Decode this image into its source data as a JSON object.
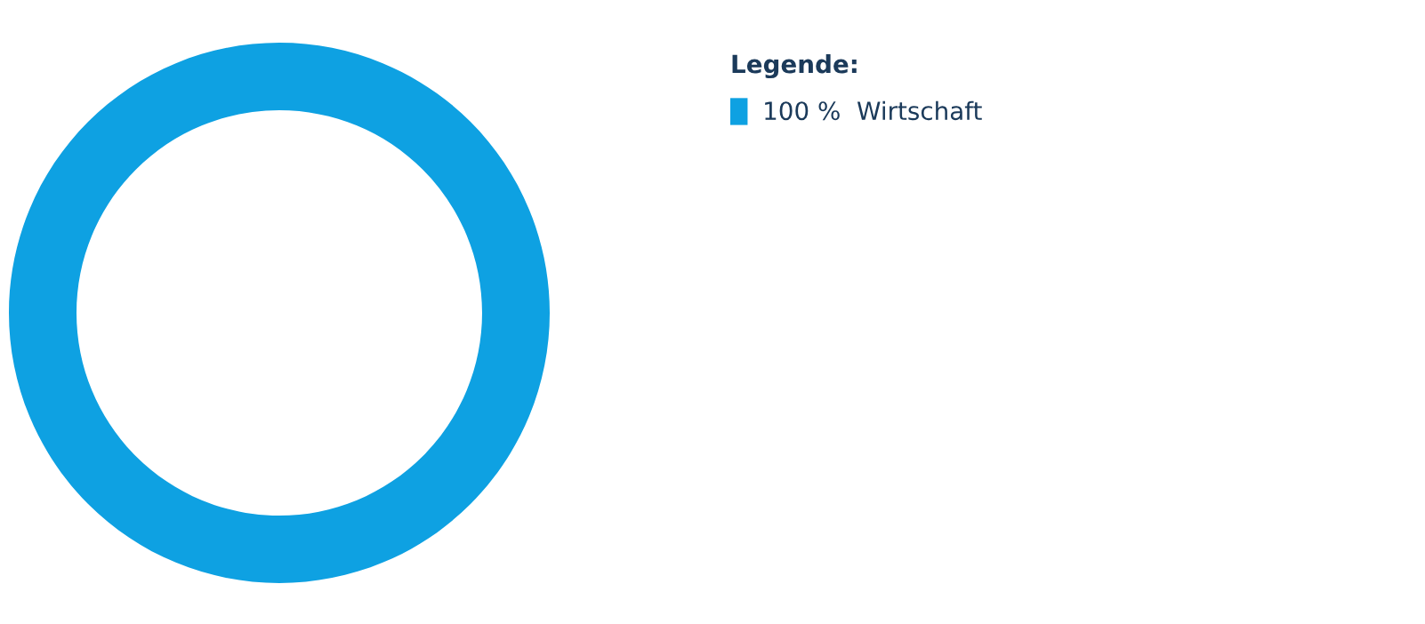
{
  "chart_data": {
    "type": "pie",
    "legend_title": "Legende:",
    "legend": "top right",
    "categories": [
      "100 %  Wirtschaft"
    ],
    "values": [
      100
    ],
    "colors": [
      "#0ea1e2"
    ]
  }
}
